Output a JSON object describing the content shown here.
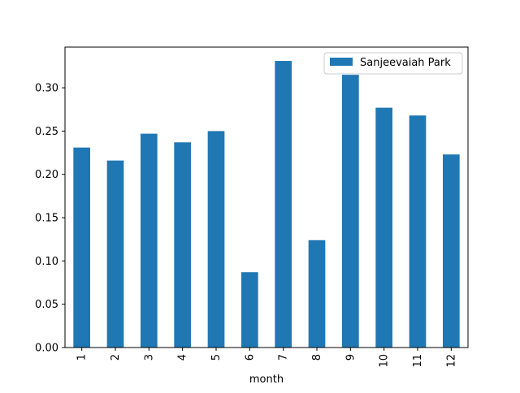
{
  "chart_data": {
    "type": "bar",
    "xlabel": "month",
    "ylabel": "",
    "categories": [
      "1",
      "2",
      "3",
      "4",
      "5",
      "6",
      "7",
      "8",
      "9",
      "10",
      "11",
      "12"
    ],
    "series": [
      {
        "name": "Sanjeevaiah Park",
        "values": [
          0.231,
          0.216,
          0.247,
          0.237,
          0.25,
          0.087,
          0.331,
          0.124,
          0.315,
          0.277,
          0.268,
          0.223
        ]
      }
    ],
    "ylim": [
      0,
      0.347
    ],
    "yticks": [
      "0.00",
      "0.05",
      "0.10",
      "0.15",
      "0.20",
      "0.25",
      "0.30"
    ],
    "grid": false,
    "legend": "top-right",
    "colors": {
      "bar": "#1f77b4",
      "axis": "#000000",
      "legend_border": "#cccccc"
    }
  }
}
